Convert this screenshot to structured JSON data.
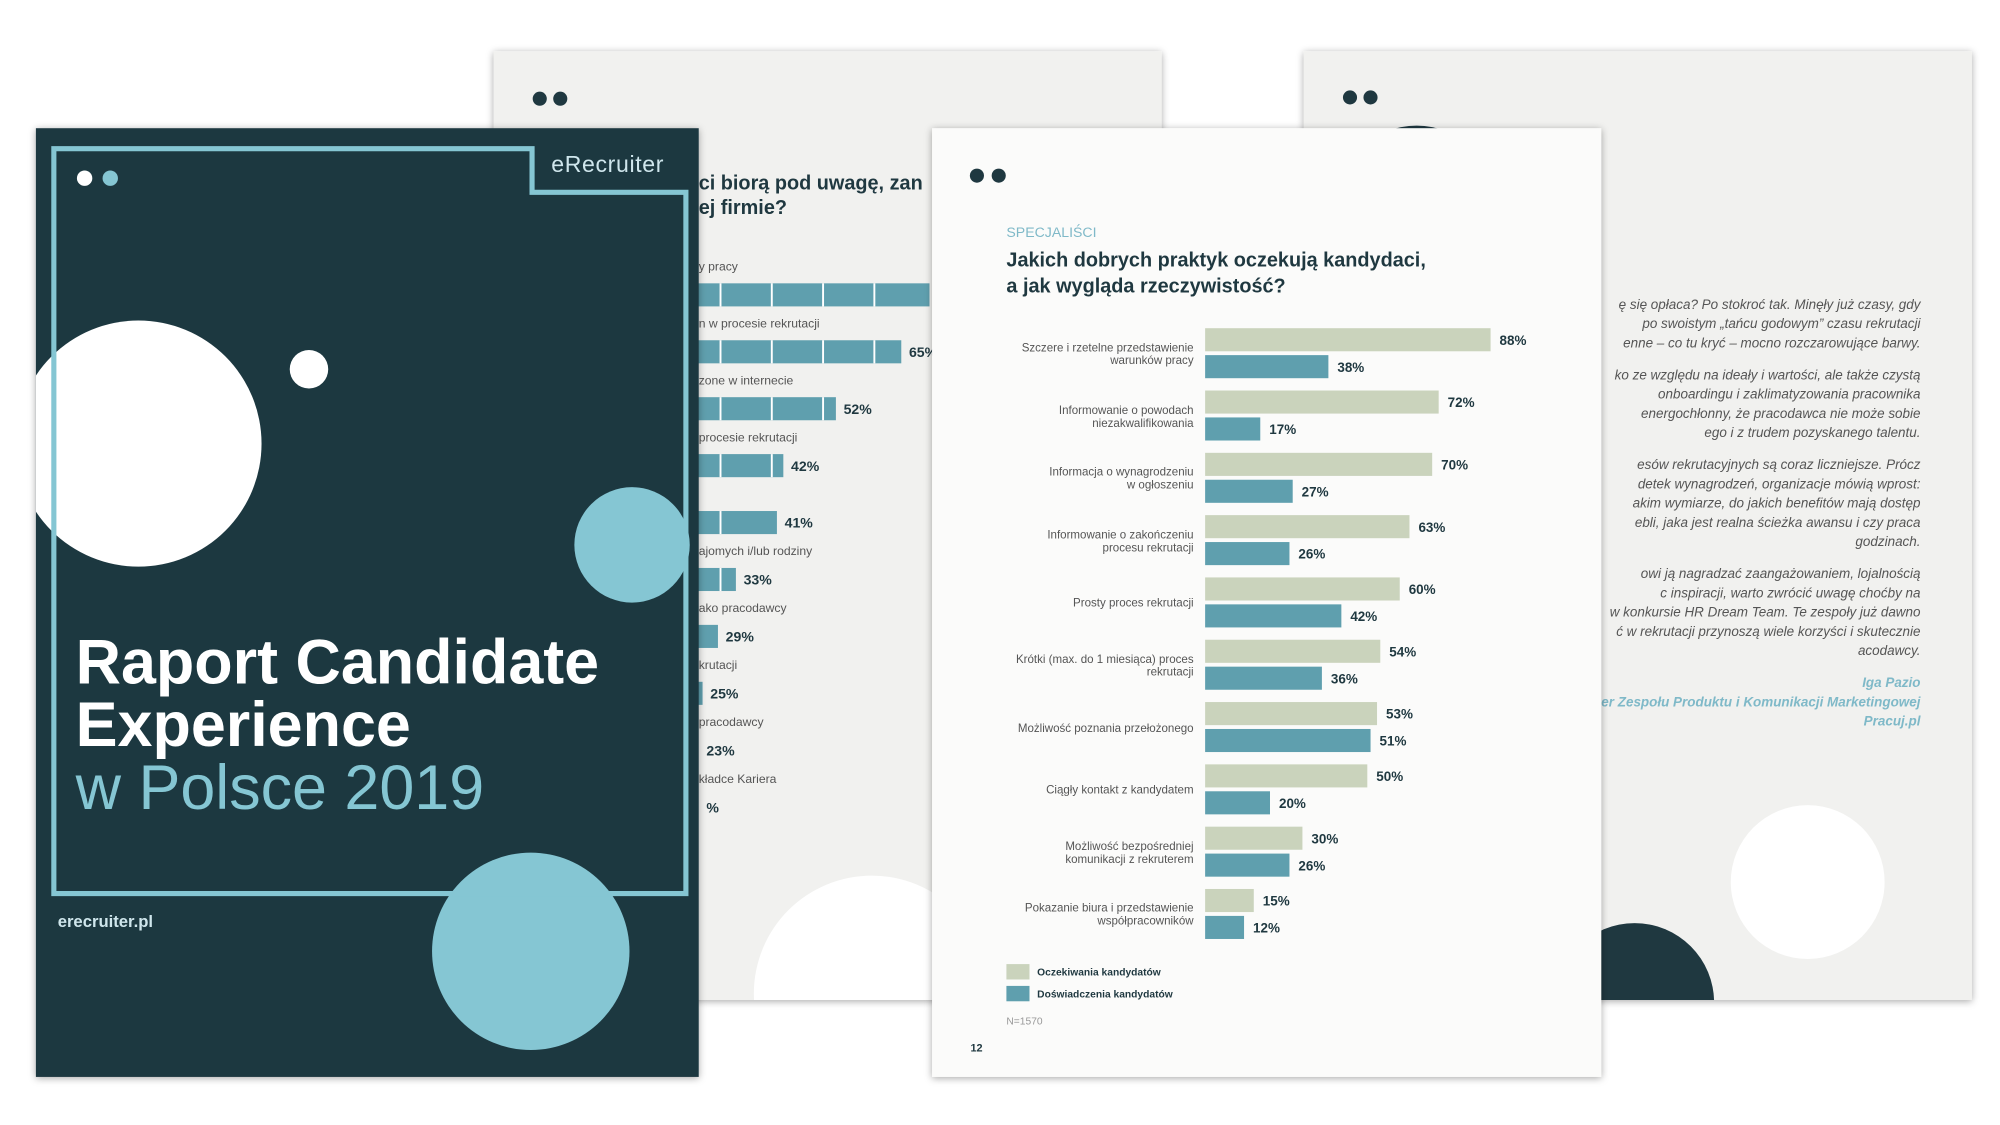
{
  "cover": {
    "brand": "eRecruiter",
    "title_lines": [
      "Raport Candidate",
      "Experience"
    ],
    "subtitle": "w Polsce 2019",
    "url": "erecruiter.pl"
  },
  "left_page": {
    "heading_lines": [
      "ci biorą pod uwagę, zan",
      "ej firmie?"
    ],
    "rows": [
      {
        "label": "y pracy"
      },
      {
        "label": "n w procesie rekrutacji",
        "value_label": "65%"
      },
      {
        "label": "zone w internecie",
        "value_label": "52%"
      },
      {
        "label": "procesie rekrutacji",
        "value_label": "42%"
      },
      {
        "value_label": "41%"
      },
      {
        "label": "ajomych i/lub rodziny",
        "value_label": "33%"
      },
      {
        "label": "ako pracodawcy",
        "value_label": "29%"
      },
      {
        "label": "krutacji",
        "value_label": "25%"
      },
      {
        "label": "pracodawcy",
        "value_label": "23%"
      },
      {
        "label": "kładce Kariera",
        "value_label": "%"
      }
    ]
  },
  "right_page": {
    "paragraphs": [
      [
        "ę się opłaca? Po stokroć tak. Minęły już czasy, gdy",
        "po swoistym „tańcu godowym” czasu rekrutacji",
        "enne – co tu kryć – mocno rozczarowujące barwy."
      ],
      [
        "ko ze względu na ideały i wartości, ale także czystą",
        "onboardingu i zaklimatyzowania pracownika",
        "energochłonny, że pracodawca nie może sobie",
        "ego i z trudem pozyskanego talentu."
      ],
      [
        "esów rekrutacyjnych są coraz liczniejsze. Prócz",
        "detek wynagrodzeń, organizacje mówią wprost:",
        "akim wymiarze, do jakich benefitów mają dostęp",
        "ebli, jaka jest realna ścieżka awansu i czy praca",
        "godzinach."
      ],
      [
        "owi ją nagradzać zaangażowaniem, lojalnością",
        "c inspiracji, warto zwrócić uwagę choćby na",
        "w konkursie HR Dream Team. Te zespoły już dawno",
        "ć w rekrutacji przynoszą wiele korzyści i skutecznie",
        "acodawcy."
      ]
    ],
    "signature": [
      "Iga Pazio",
      "er Zespołu Produktu i Komunikacji Marketingowej",
      "Pracuj.pl"
    ]
  },
  "main_page": {
    "section": "SPECJALIŚCI",
    "title_lines": [
      "Jakich dobrych praktyk oczekują kandydaci,",
      "a jak wygląda rzeczywistość?"
    ],
    "note": "N=1570",
    "page_number": "12"
  },
  "chart_data": {
    "type": "hbar",
    "categories": [
      "Szczere i rzetelne przedstawienie\nwarunków pracy",
      "Informowanie o powodach\nniezakwalifikowania",
      "Informacja o wynagrodzeniu\nw ogłoszeniu",
      "Informowanie o zakończeniu\nprocesu rekrutacji",
      "Prosty proces rekrutacji",
      "Krótki (max. do 1 miesiąca) proces\nrekrutacji",
      "Możliwość poznania przełożonego",
      "Ciągły kontakt z kandydatem",
      "Możliwość bezpośredniej\nkomunikacji z rekruterem",
      "Pokazanie biura i przedstawienie\nwspółpracowników"
    ],
    "series": [
      {
        "name": "Oczekiwania kandydatów",
        "color": "#cad3bc",
        "values": [
          88,
          72,
          70,
          63,
          60,
          54,
          53,
          50,
          30,
          15
        ],
        "value_labels": [
          "88%",
          "72%",
          "70%",
          "63%",
          "60%",
          "54%",
          "53%",
          "50%",
          "30%",
          "15%"
        ]
      },
      {
        "name": "Doświadczenia kandydatów",
        "color": "#5f9fae",
        "values": [
          38,
          17,
          27,
          26,
          42,
          36,
          51,
          20,
          26,
          12
        ],
        "value_labels": [
          "38%",
          "17%",
          "27%",
          "26%",
          "42%",
          "36%",
          "51%",
          "20%",
          "26%",
          "12%"
        ]
      }
    ],
    "xlim": [
      0,
      100
    ]
  }
}
